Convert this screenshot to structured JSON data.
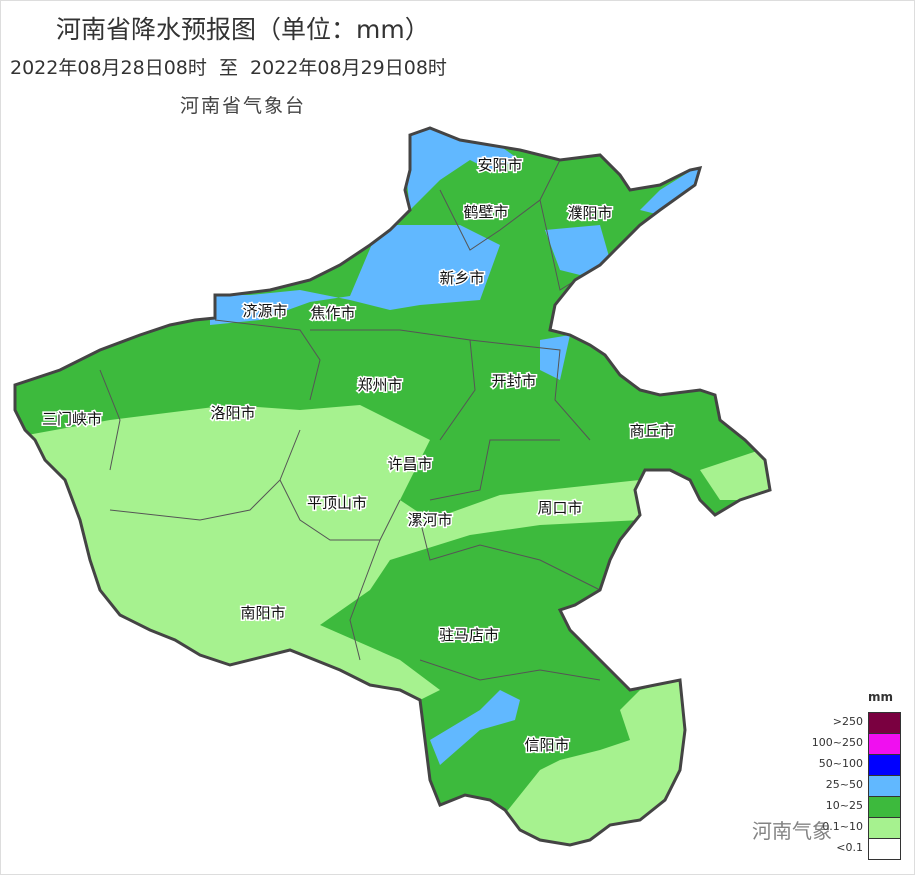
{
  "header": {
    "title": "河南省降水预报图（单位：mm）",
    "period": "2022年08月28日08时  至  2022年08月29日08时",
    "issuer": "河南省气象台"
  },
  "map": {
    "colors": {
      "border": "#444444",
      "light_green": "#a6f28f",
      "green": "#3dba3d",
      "blue": "#61b8ff"
    },
    "cities": [
      "安阳市",
      "鹤壁市",
      "濮阳市",
      "新乡市",
      "济源市",
      "焦作市",
      "郑州市",
      "开封市",
      "三门峡市",
      "洛阳市",
      "商丘市",
      "许昌市",
      "平顶山市",
      "漯河市",
      "周口市",
      "南阳市",
      "驻马店市",
      "信阳市"
    ]
  },
  "legend": {
    "unit": "mm",
    "items": [
      {
        "label": ">250",
        "color": "#7a0040"
      },
      {
        "label": "100~250",
        "color": "#f00ff0"
      },
      {
        "label": "50~100",
        "color": "#0000ff"
      },
      {
        "label": "25~50",
        "color": "#61b8ff"
      },
      {
        "label": "10~25",
        "color": "#3dba3d"
      },
      {
        "label": "0.1~10",
        "color": "#a6f28f"
      },
      {
        "label": "<0.1",
        "color": "#ffffff"
      }
    ]
  },
  "watermark": "河南气象"
}
